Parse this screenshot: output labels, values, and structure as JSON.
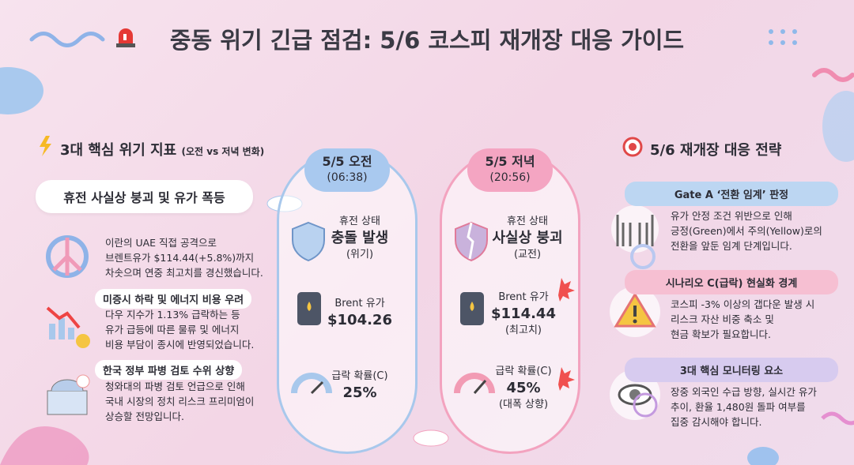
{
  "header": {
    "title": "중동 위기 긴급 점검: 5/6 코스피 재개장 대응 가이드"
  },
  "indicators": {
    "heading": "3대 핵심 위기 지표",
    "heading_note": "(오전 vs 저녁 변화)",
    "banner": "휴전 사실상 붕괴 및 유가 폭등",
    "items": [
      {
        "lines": [
          "이란의 UAE 직접 공격으로",
          "브렌트유가 $114.44(+5.8%)까지",
          "차솟으며 연중 최고치를 경신했습니다."
        ]
      },
      {
        "title": "미증시 하락 및 에너지 비용 우려",
        "lines": [
          "다우 지수가 1.13% 급락하는 등",
          "유가 급등에 따른 물류 및 에너지",
          "비용 부담이 종시에 반영되었습니다."
        ]
      },
      {
        "title": "한국 정부 파병 검토 수위 상향",
        "lines": [
          "청와대의 파병 검토 언급으로 인해",
          "국내 시장의 정치 리스크 프리미엄이",
          "상승할 전망입니다."
        ]
      }
    ]
  },
  "comparison": [
    {
      "time": "5/5 오전",
      "clock": "(06:38)",
      "ceasefire": {
        "label": "휴전 상태",
        "value": "충돌 발생",
        "note": "(위기)"
      },
      "brent": {
        "label": "Brent 유가",
        "value": "$104.26"
      },
      "crash": {
        "label": "급락 확률(C)",
        "value": "25%"
      }
    },
    {
      "time": "5/5 저녁",
      "clock": "(20:56)",
      "ceasefire": {
        "label": "휴전 상태",
        "value": "사실상 붕괴",
        "note": "(교전)"
      },
      "brent": {
        "label": "Brent 유가",
        "value": "$114.44",
        "note": "(최고치)"
      },
      "crash": {
        "label": "급락 확률(C)",
        "value": "45%",
        "note": "(대폭 상향)"
      }
    }
  ],
  "strategy": {
    "heading": "5/6 재개장 대응 전략",
    "cards": [
      {
        "title": "Gate A ‘전환 임계’ 판정",
        "lines": [
          "유가 안정 조건 위반으로 인해",
          "긍정(Green)에서 주의(Yellow)로의",
          "전환을 앞둔 임계 단계입니다."
        ]
      },
      {
        "title": "시나리오 C(급락) 현실화 경계",
        "lines": [
          "코스피 -3% 이상의 갭다운 발생 시",
          "리스크 자산 비중 축소 및",
          "현금 확보가 필요합니다."
        ]
      },
      {
        "title": "3대 핵심 모니터링 요소",
        "lines": [
          "장중 외국인 수급 방향, 실시간 유가",
          "추이, 환율 1,480원 돌파 여부를",
          "집중 감시해야 합니다."
        ]
      }
    ]
  }
}
